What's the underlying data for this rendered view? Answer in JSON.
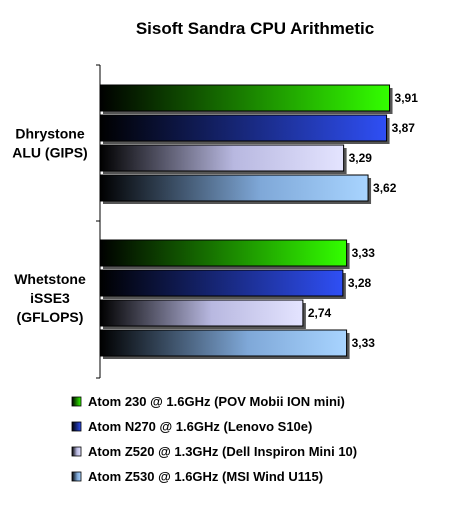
{
  "chart_data": {
    "type": "bar",
    "orientation": "horizontal",
    "title": "Sisoft Sandra CPU Arithmetic",
    "categories": [
      [
        "Dhrystone",
        "ALU (GIPS)"
      ],
      [
        "Whetstone",
        "iSSE3",
        "(GFLOPS)"
      ]
    ],
    "xlim": [
      0,
      4.2
    ],
    "grid": false,
    "legend_position": "bottom",
    "series": [
      {
        "name": "Atom 230 @ 1.6GHz (POV Mobii ION mini)",
        "values": [
          3.91,
          3.33
        ],
        "labels": [
          "3,91",
          "3,33"
        ],
        "color": "#33cc00"
      },
      {
        "name": "Atom N270 @ 1.6GHz (Lenovo S10e)",
        "values": [
          3.87,
          3.28
        ],
        "labels": [
          "3,87",
          "3,28"
        ],
        "color": "#2244dd"
      },
      {
        "name": "Atom Z520 @ 1.3GHz (Dell Inspiron Mini 10)",
        "values": [
          3.29,
          2.74
        ],
        "labels": [
          "3,29",
          "2,74"
        ],
        "color": "#d8d8ff"
      },
      {
        "name": "Atom Z530 @ 1.6GHz (MSI Wind U115)",
        "values": [
          3.62,
          3.33
        ],
        "labels": [
          "3,62",
          "3,33"
        ],
        "color": "#99ccff"
      }
    ]
  }
}
